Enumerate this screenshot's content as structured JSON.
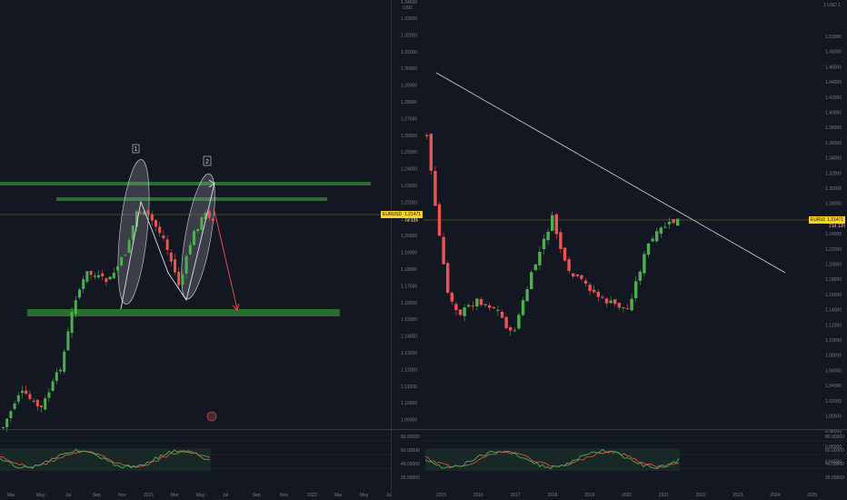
{
  "left_chart": {
    "symbol_tag": "EURUSD",
    "price_tag": "1.21471",
    "price_tag_sub": "7d 12h",
    "time_labels": [
      "Mar",
      "May",
      "Jul",
      "Sep",
      "Nov",
      "2021",
      "Mar",
      "May",
      "Jul",
      "Sep",
      "Nov",
      "2022",
      "Mar",
      "May",
      "Jul"
    ],
    "annotations": {
      "label_one": "1",
      "label_two": "2"
    },
    "oscillator_levels": [
      "80.00000",
      "60.00000",
      "40.00000",
      "20.00000"
    ]
  },
  "center_scale": {
    "currency": "USD",
    "top_label": "1.34000",
    "ticks": [
      "1.33000",
      "1.32000",
      "1.31000",
      "1.30000",
      "1.29000",
      "1.28000",
      "1.27000",
      "1.26000",
      "1.25000",
      "1.24000",
      "1.23000",
      "1.22000",
      "1.21000",
      "1.20000",
      "1.19000",
      "1.18000",
      "1.17000",
      "1.16000",
      "1.15000",
      "1.14000",
      "1.13000",
      "1.12000",
      "1.11000",
      "1.10000",
      "1.09000"
    ]
  },
  "right_chart": {
    "currency": "1 USD 1",
    "symbol_tag": "EURUSD",
    "price_tag": "1.21471",
    "price_tag_sub": "21d 12h",
    "ticks": [
      "1.50000",
      "1.48000",
      "1.46000",
      "1.44000",
      "1.42000",
      "1.40000",
      "1.38000",
      "1.36000",
      "1.34000",
      "1.32000",
      "1.30000",
      "1.28000",
      "1.26000",
      "1.24000",
      "1.22000",
      "1.20000",
      "1.18000",
      "1.16000",
      "1.14000",
      "1.12000",
      "1.10000",
      "1.08000",
      "1.06000",
      "1.04000",
      "1.02000",
      "1.00000",
      "0.98000",
      "0.96000",
      "0.94000"
    ],
    "time_labels": [
      "2015",
      "2016",
      "2017",
      "2018",
      "2019",
      "2020",
      "2021",
      "2022",
      "2023",
      "2024",
      "2025"
    ],
    "oscillator_levels": [
      "80.00000",
      "60.00000",
      "40.00000",
      "20.00000"
    ]
  },
  "colors": {
    "background": "#131722",
    "bull": "#26a69a",
    "bear": "#ef5350",
    "bull_bright": "#4caf50",
    "zone": "#388e3c",
    "price_tag": "#f7d329"
  }
}
